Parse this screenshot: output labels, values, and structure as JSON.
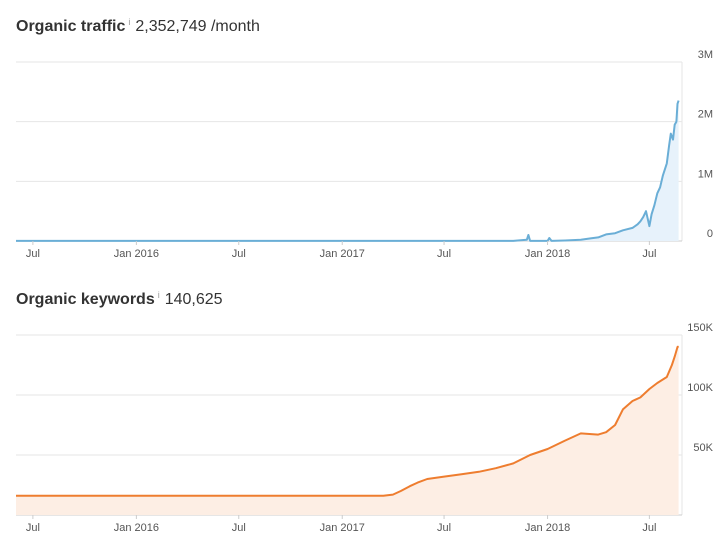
{
  "traffic": {
    "title": "Organic traffic",
    "info": "i",
    "value": "2,352,749 /month"
  },
  "keywords": {
    "title": "Organic keywords",
    "info": "i",
    "value": "140,625"
  },
  "colors": {
    "traffic_line": "#6aaed6",
    "traffic_fill": "#e7f2fb",
    "keywords_line": "#ee7d2f",
    "keywords_fill": "#fdeee4",
    "grid": "#e6e6e6",
    "axis": "#cccccc"
  },
  "chart_data": [
    {
      "type": "area",
      "x_tick_labels": [
        "Jul",
        "Jan 2016",
        "Jul",
        "Jan 2017",
        "Jul",
        "Jan 2018",
        "Jul"
      ],
      "x_ticks": [
        "2015-07-01",
        "2016-01-01",
        "2016-07-01",
        "2017-01-01",
        "2017-07-01",
        "2018-01-01",
        "2018-07-01"
      ],
      "y_tick_labels": [
        "0",
        "1M",
        "2M",
        "3M"
      ],
      "y_ticks": [
        0,
        1000000,
        2000000,
        3000000
      ],
      "ylim": [
        0,
        3000000
      ],
      "xlim": [
        "2015-06-01",
        "2018-08-28"
      ],
      "grid": true,
      "series": [
        {
          "x": [
            "2015-06-01",
            "2017-11-01",
            "2017-11-25",
            "2017-11-28",
            "2017-12-01",
            "2018-01-01",
            "2018-01-04",
            "2018-01-08",
            "2018-02-01",
            "2018-03-01",
            "2018-03-20",
            "2018-04-01",
            "2018-04-15",
            "2018-05-01",
            "2018-05-15",
            "2018-06-01",
            "2018-06-10",
            "2018-06-15",
            "2018-06-20",
            "2018-06-25",
            "2018-07-01",
            "2018-07-05",
            "2018-07-10",
            "2018-07-15",
            "2018-07-20",
            "2018-07-25",
            "2018-08-01",
            "2018-08-05",
            "2018-08-08",
            "2018-08-12",
            "2018-08-15",
            "2018-08-18",
            "2018-08-20",
            "2018-08-22"
          ],
          "values": [
            2000,
            2000,
            20000,
            100000,
            2000,
            2000,
            50000,
            2000,
            8000,
            20000,
            45000,
            60000,
            110000,
            130000,
            180000,
            220000,
            280000,
            330000,
            400000,
            500000,
            250000,
            450000,
            600000,
            800000,
            900000,
            1100000,
            1300000,
            1600000,
            1800000,
            1700000,
            1950000,
            2000000,
            2300000,
            2352749
          ]
        }
      ]
    },
    {
      "type": "area",
      "x_tick_labels": [
        "Jul",
        "Jan 2016",
        "Jul",
        "Jan 2017",
        "Jul",
        "Jan 2018",
        "Jul"
      ],
      "x_ticks": [
        "2015-07-01",
        "2016-01-01",
        "2016-07-01",
        "2017-01-01",
        "2017-07-01",
        "2018-01-01",
        "2018-07-01"
      ],
      "y_tick_labels": [
        "50K",
        "100K",
        "150K"
      ],
      "y_ticks": [
        50000,
        100000,
        150000
      ],
      "ylim": [
        0,
        150000
      ],
      "xlim": [
        "2015-06-01",
        "2018-08-28"
      ],
      "grid": true,
      "series": [
        {
          "x": [
            "2015-06-01",
            "2017-03-15",
            "2017-04-01",
            "2017-04-15",
            "2017-05-01",
            "2017-05-15",
            "2017-06-01",
            "2017-07-01",
            "2017-08-01",
            "2017-09-01",
            "2017-10-01",
            "2017-11-01",
            "2017-12-01",
            "2018-01-01",
            "2018-02-01",
            "2018-03-01",
            "2018-04-01",
            "2018-04-15",
            "2018-05-01",
            "2018-05-15",
            "2018-06-01",
            "2018-06-15",
            "2018-07-01",
            "2018-07-15",
            "2018-08-01",
            "2018-08-10",
            "2018-08-15",
            "2018-08-20",
            "2018-08-22"
          ],
          "values": [
            16000,
            16000,
            17000,
            20000,
            24000,
            27000,
            30000,
            32000,
            34000,
            36000,
            39000,
            43000,
            50000,
            55000,
            62000,
            68000,
            67000,
            69000,
            75000,
            88000,
            95000,
            98000,
            105000,
            110000,
            115000,
            125000,
            132000,
            140000,
            140625
          ]
        }
      ]
    }
  ]
}
